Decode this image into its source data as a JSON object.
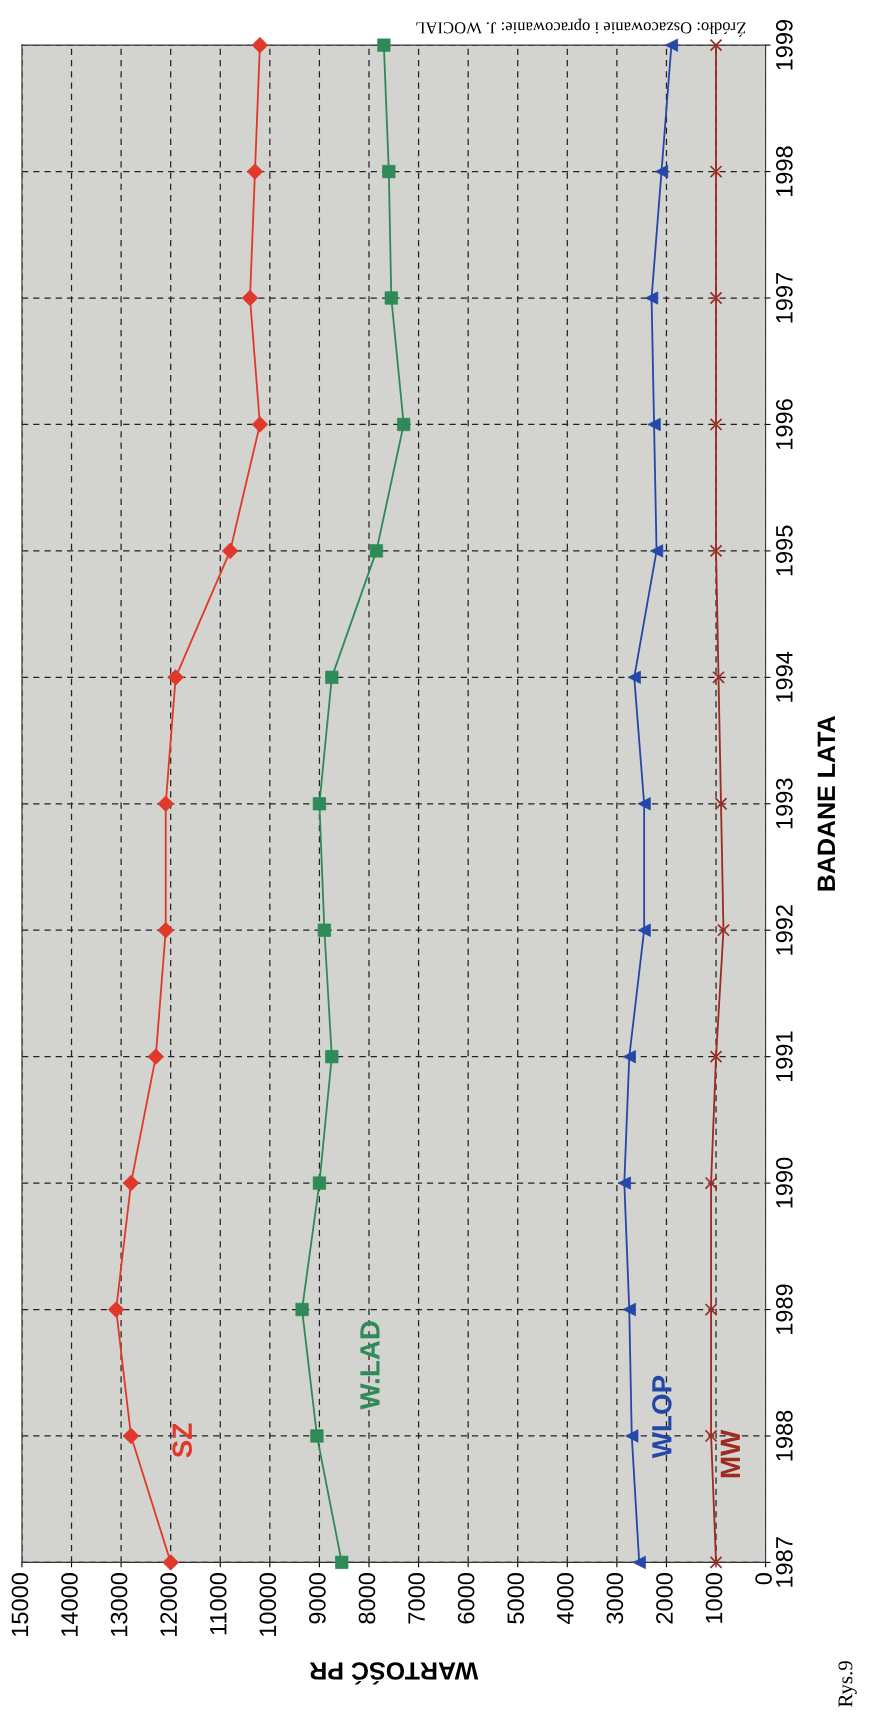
{
  "chart_data": {
    "type": "line",
    "orientation": "horizontal",
    "xlabel": "WARTOŚĆ PR",
    "ylabel": "BADANE LATA",
    "annotations": [
      "Źródło: Oszacowanie i opracowanie: J. WOCIAL",
      "Rys.9"
    ],
    "categories": [
      "1999",
      "1998",
      "1997",
      "1996",
      "1995",
      "1994",
      "1993",
      "1992",
      "1991",
      "1990",
      "1989",
      "1988",
      "1987"
    ],
    "xlim": [
      15000,
      0
    ],
    "xticks": [
      15000,
      14000,
      13000,
      12000,
      11000,
      10000,
      9000,
      8000,
      7000,
      6000,
      5000,
      4000,
      3000,
      2000,
      1000,
      0
    ],
    "grid": true,
    "legend": false,
    "line_style": "solid",
    "series": [
      {
        "name": "SZ",
        "color": "#e0392b",
        "marker": "diamond",
        "values": [
          10200,
          10300,
          10400,
          10200,
          10800,
          11900,
          12100,
          12100,
          12300,
          12800,
          13100,
          12800,
          12000
        ]
      },
      {
        "name": "W.LAD",
        "color": "#2e8b57",
        "marker": "square",
        "values": [
          7700,
          7600,
          7550,
          7300,
          7850,
          8750,
          9000,
          8900,
          8750,
          9000,
          9350,
          9050,
          8550
        ]
      },
      {
        "name": "WLOP",
        "color": "#2547a8",
        "marker": "triangle",
        "values": [
          1900,
          2100,
          2300,
          2250,
          2200,
          2650,
          2450,
          2450,
          2750,
          2850,
          2750,
          2700,
          2550
        ]
      },
      {
        "name": "MW",
        "color": "#9e2a22",
        "marker": "cross",
        "values": [
          1000,
          1000,
          1000,
          1000,
          1000,
          950,
          900,
          850,
          1000,
          1100,
          1100,
          1100,
          1000
        ]
      }
    ]
  }
}
